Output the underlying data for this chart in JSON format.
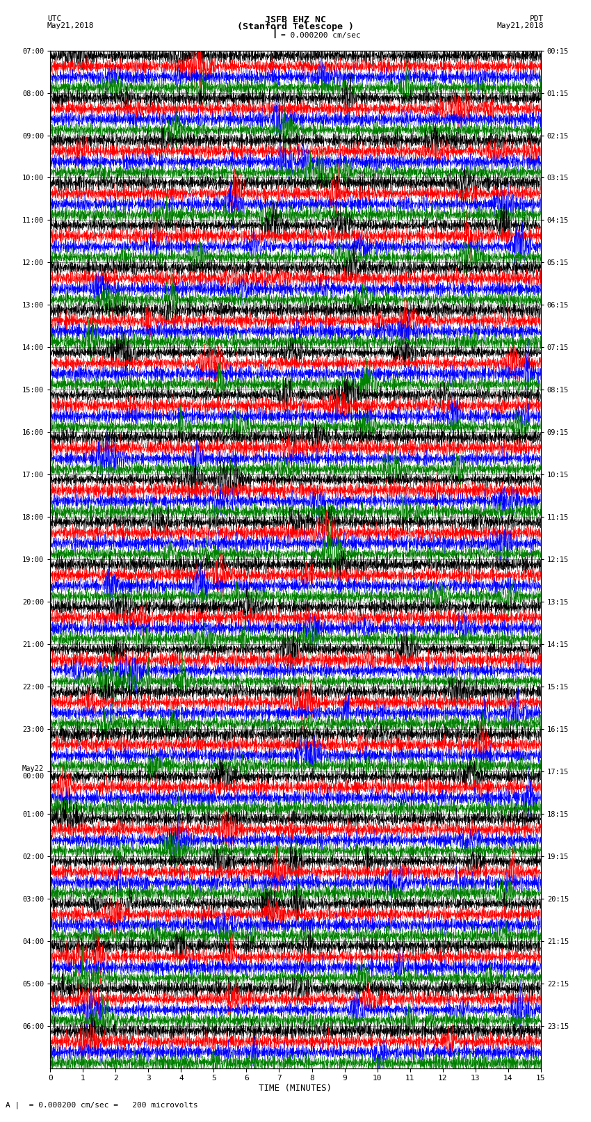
{
  "title_line1": "JSFB EHZ NC",
  "title_line2": "(Stanford Telescope )",
  "scale_label": "I = 0.000200 cm/sec",
  "left_header_line1": "UTC",
  "left_header_line2": "May21,2018",
  "right_header_line1": "PDT",
  "right_header_line2": "May21,2018",
  "xlabel": "TIME (MINUTES)",
  "footer": "A |  = 0.000200 cm/sec =   200 microvolts",
  "left_times": [
    "07:00",
    "08:00",
    "09:00",
    "10:00",
    "11:00",
    "12:00",
    "13:00",
    "14:00",
    "15:00",
    "16:00",
    "17:00",
    "18:00",
    "19:00",
    "20:00",
    "21:00",
    "22:00",
    "23:00",
    "May22\n00:00",
    "01:00",
    "02:00",
    "03:00",
    "04:00",
    "05:00",
    "06:00"
  ],
  "right_times": [
    "00:15",
    "01:15",
    "02:15",
    "03:15",
    "04:15",
    "05:15",
    "06:15",
    "07:15",
    "08:15",
    "09:15",
    "10:15",
    "11:15",
    "12:15",
    "13:15",
    "14:15",
    "15:15",
    "16:15",
    "17:15",
    "18:15",
    "19:15",
    "20:15",
    "21:15",
    "22:15",
    "23:15"
  ],
  "n_rows": 24,
  "traces_per_row": 4,
  "colors": [
    "black",
    "red",
    "blue",
    "green"
  ],
  "bg_color": "white",
  "fig_width": 8.5,
  "fig_height": 16.13,
  "dpi": 100,
  "x_ticks": [
    0,
    1,
    2,
    3,
    4,
    5,
    6,
    7,
    8,
    9,
    10,
    11,
    12,
    13,
    14,
    15
  ],
  "trace_amplitude": 0.38,
  "noise_seed": 42
}
